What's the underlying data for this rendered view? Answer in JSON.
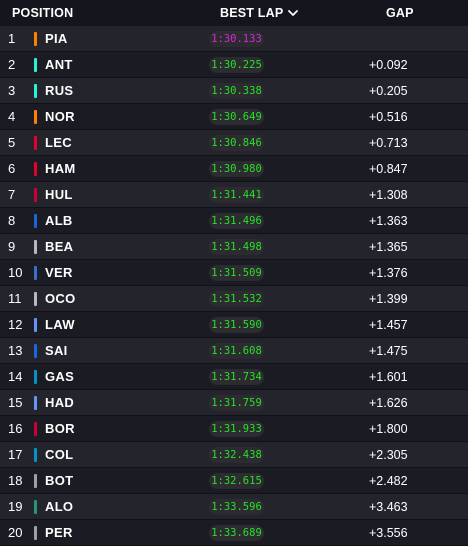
{
  "header": {
    "position": "POSITION",
    "best_lap": "BEST LAP",
    "gap": "GAP"
  },
  "colors": {
    "fastest_lap": "#d02bd6",
    "personal_lap": "#28e028"
  },
  "rows": [
    {
      "pos": "1",
      "driver": "PIA",
      "lap": "1:30.133",
      "gap": "",
      "team_color": "#ff8000",
      "fastest": true
    },
    {
      "pos": "2",
      "driver": "ANT",
      "lap": "1:30.225",
      "gap": "+0.092",
      "team_color": "#27f4d2",
      "fastest": false
    },
    {
      "pos": "3",
      "driver": "RUS",
      "lap": "1:30.338",
      "gap": "+0.205",
      "team_color": "#27f4d2",
      "fastest": false
    },
    {
      "pos": "4",
      "driver": "NOR",
      "lap": "1:30.649",
      "gap": "+0.516",
      "team_color": "#ff8000",
      "fastest": false
    },
    {
      "pos": "5",
      "driver": "LEC",
      "lap": "1:30.846",
      "gap": "+0.713",
      "team_color": "#e8002d",
      "fastest": false
    },
    {
      "pos": "6",
      "driver": "HAM",
      "lap": "1:30.980",
      "gap": "+0.847",
      "team_color": "#e8002d",
      "fastest": false
    },
    {
      "pos": "7",
      "driver": "HUL",
      "lap": "1:31.441",
      "gap": "+1.308",
      "team_color": "#cc0033",
      "fastest": false
    },
    {
      "pos": "8",
      "driver": "ALB",
      "lap": "1:31.496",
      "gap": "+1.363",
      "team_color": "#1868db",
      "fastest": false
    },
    {
      "pos": "9",
      "driver": "BEA",
      "lap": "1:31.498",
      "gap": "+1.365",
      "team_color": "#b6babd",
      "fastest": false
    },
    {
      "pos": "10",
      "driver": "VER",
      "lap": "1:31.509",
      "gap": "+1.376",
      "team_color": "#3671c6",
      "fastest": false
    },
    {
      "pos": "11",
      "driver": "OCO",
      "lap": "1:31.532",
      "gap": "+1.399",
      "team_color": "#b6babd",
      "fastest": false
    },
    {
      "pos": "12",
      "driver": "LAW",
      "lap": "1:31.590",
      "gap": "+1.457",
      "team_color": "#6692ff",
      "fastest": false
    },
    {
      "pos": "13",
      "driver": "SAI",
      "lap": "1:31.608",
      "gap": "+1.475",
      "team_color": "#1868db",
      "fastest": false
    },
    {
      "pos": "14",
      "driver": "GAS",
      "lap": "1:31.734",
      "gap": "+1.601",
      "team_color": "#0093cc",
      "fastest": false
    },
    {
      "pos": "15",
      "driver": "HAD",
      "lap": "1:31.759",
      "gap": "+1.626",
      "team_color": "#6692ff",
      "fastest": false
    },
    {
      "pos": "16",
      "driver": "BOR",
      "lap": "1:31.933",
      "gap": "+1.800",
      "team_color": "#cc0033",
      "fastest": false
    },
    {
      "pos": "17",
      "driver": "COL",
      "lap": "1:32.438",
      "gap": "+2.305",
      "team_color": "#0093cc",
      "fastest": false
    },
    {
      "pos": "18",
      "driver": "BOT",
      "lap": "1:32.615",
      "gap": "+2.482",
      "team_color": "#9ea0a4",
      "fastest": false
    },
    {
      "pos": "19",
      "driver": "ALO",
      "lap": "1:33.596",
      "gap": "+3.463",
      "team_color": "#229971",
      "fastest": false
    },
    {
      "pos": "20",
      "driver": "PER",
      "lap": "1:33.689",
      "gap": "+3.556",
      "team_color": "#9ea0a4",
      "fastest": false
    }
  ]
}
